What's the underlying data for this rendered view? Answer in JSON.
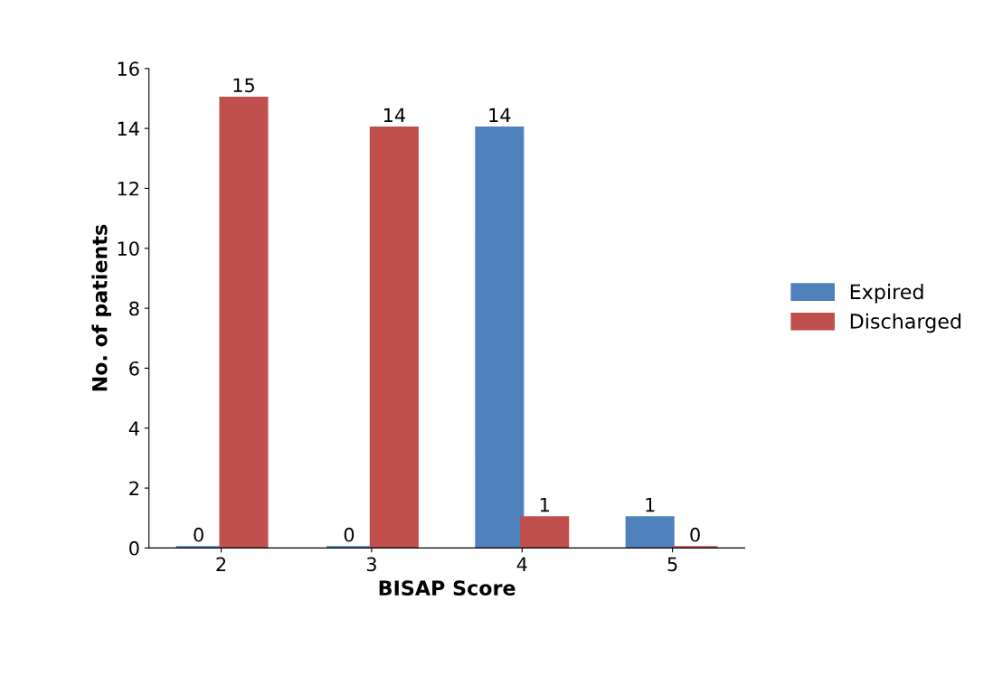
{
  "chart_data": {
    "type": "bar",
    "xlabel": "BISAP Score",
    "ylabel": "No. of patients",
    "categories": [
      "2",
      "3",
      "4",
      "5"
    ],
    "series": [
      {
        "name": "Expired",
        "color": "#4f81bd",
        "values": [
          0,
          0,
          14,
          1
        ]
      },
      {
        "name": "Discharged",
        "color": "#c0504d",
        "values": [
          15,
          14,
          1,
          0
        ]
      }
    ],
    "ylim": [
      0,
      16
    ],
    "yticks": [
      0,
      2,
      4,
      6,
      8,
      10,
      12,
      14,
      16
    ],
    "data_labels": true,
    "legend": "right",
    "grid": false
  }
}
